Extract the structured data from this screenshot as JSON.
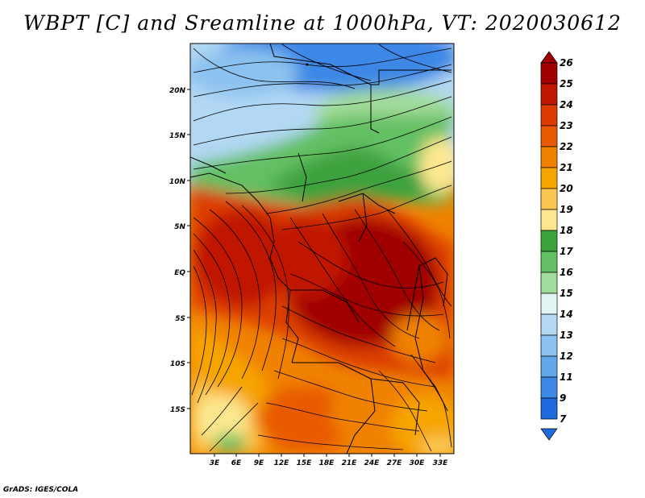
{
  "title": "WBPT [C] and Sreamline at 1000hPa, VT: 2020030612",
  "credit": "GrADS: IGES/COLA",
  "map": {
    "lat_labels": [
      "20N",
      "15N",
      "10N",
      "5N",
      "EQ",
      "5S",
      "10S",
      "15S"
    ],
    "lon_labels": [
      "3E",
      "6E",
      "9E",
      "12E",
      "15E",
      "18E",
      "21E",
      "24E",
      "27E",
      "30E",
      "33E"
    ]
  },
  "colorbar": {
    "labels": [
      "26",
      "25",
      "24",
      "23",
      "22",
      "21",
      "20",
      "19",
      "18",
      "17",
      "16",
      "15",
      "14",
      "13",
      "12",
      "11",
      "9",
      "7"
    ],
    "colors": [
      "#a00000",
      "#c01800",
      "#dc3c00",
      "#e85a00",
      "#f08200",
      "#f6a400",
      "#fac750",
      "#fce78e",
      "#3ca23c",
      "#64c064",
      "#a2dc9a",
      "#e0f4f4",
      "#b2d8f4",
      "#8cc2ef",
      "#62a6eb",
      "#3c88e6",
      "#1e6adf"
    ]
  }
}
